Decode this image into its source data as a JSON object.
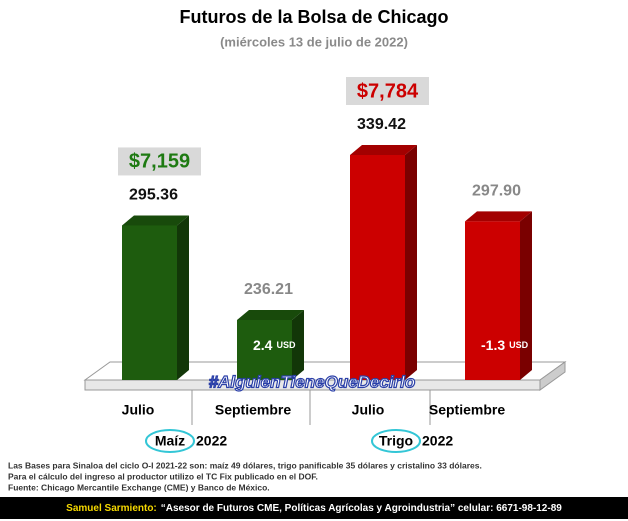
{
  "chart_data": {
    "type": "bar3d",
    "title": "Futuros de la Bolsa de Chicago",
    "subtitle": "(miércoles 13 de julio de 2022)",
    "categories": [
      "Julio",
      "Septiembre",
      "Julio",
      "Septiembre"
    ],
    "values": [
      295.36,
      236.21,
      339.42,
      297.9
    ],
    "value_labels": [
      "295.36",
      "236.21",
      "339.42",
      "297.90"
    ],
    "colors": [
      "#1e5c0e",
      "#1e5c0e",
      "#cc0000",
      "#cc0000"
    ],
    "groups": [
      {
        "name": "Maíz",
        "year": "2022",
        "price": "$7,159",
        "price_color": "#1e7a12",
        "spread": "2.4",
        "unit": "USD"
      },
      {
        "name": "Trigo",
        "year": "2022",
        "price": "$7,784",
        "price_color": "#cc0000",
        "spread": "-1.3",
        "unit": "USD"
      }
    ],
    "watermark": "#AlguienTieneQueDecirlo",
    "notes": [
      "Las Bases para Sinaloa del ciclo O-I 2021-22 son: maíz 49 dólares, trigo panificable 35 dólares y cristalino 33 dólares.",
      "Para el cálculo del ingreso al productor utilizo el TC Fix publicado en el DOF.",
      "Fuente: Chicago Mercantile Exchange (CME) y Banco de México."
    ],
    "footer": {
      "author": "Samuel Sarmiento:",
      "text": "“Asesor de Futuros CME, Políticas Agrícolas y Agroindustria”  celular: 6671-98-12-89"
    }
  }
}
